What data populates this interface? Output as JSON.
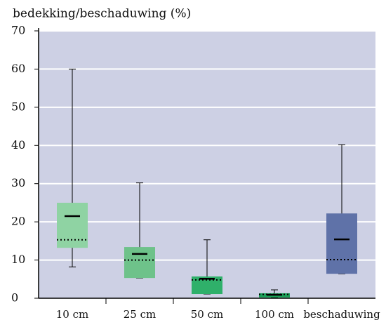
{
  "chart_data": {
    "type": "box",
    "title": "bedekking/beschaduwing (%)",
    "categories": [
      "10 cm",
      "25 cm",
      "50 cm",
      "100 cm",
      "beschaduwing"
    ],
    "boxes": [
      {
        "min": 8.2,
        "q1": 13.2,
        "median": 21.5,
        "mean": 15.3,
        "q3": 25,
        "max": 60,
        "color": "#8fd3a3"
      },
      {
        "min": 5.3,
        "q1": 5.3,
        "median": 11.6,
        "mean": 10,
        "q3": 13.4,
        "max": 30.2,
        "color": "#6ec28a"
      },
      {
        "min": 1.1,
        "q1": 1.1,
        "median": 5.1,
        "mean": 4.8,
        "q3": 5.7,
        "max": 15.3,
        "color": "#2fb06a"
      },
      {
        "min": 0.2,
        "q1": 0.2,
        "median": 0.9,
        "mean": 1.0,
        "q3": 1.3,
        "max": 2.2,
        "color": "#1aa058"
      },
      {
        "min": 6.4,
        "q1": 6.4,
        "median": 15.4,
        "mean": 10.1,
        "q3": 22.2,
        "max": 40.2,
        "color": "#5f72a8"
      }
    ],
    "ylim": [
      0,
      70
    ],
    "yticks": [
      0,
      10,
      20,
      30,
      40,
      50,
      60,
      70
    ],
    "grid": true,
    "background": "#cdd0e4"
  }
}
